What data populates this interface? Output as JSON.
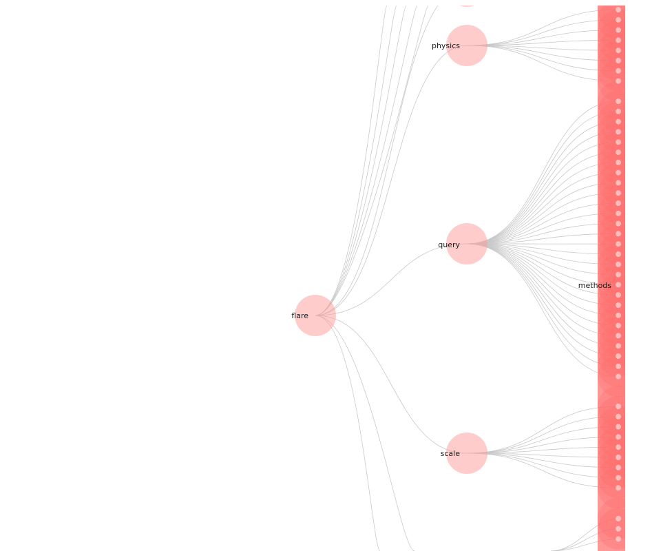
{
  "tree": {
    "root": {
      "label": "flare"
    },
    "branches": [
      {
        "label": "physics"
      },
      {
        "label": "query"
      },
      {
        "label": "scale"
      }
    ],
    "leaf_label": "methods"
  },
  "colors": {
    "node_fill": "#ff9999",
    "leaf_fill": "#ff6b6b",
    "link": "#c8c8c8",
    "leaf_dot": "#ffd0d0"
  }
}
